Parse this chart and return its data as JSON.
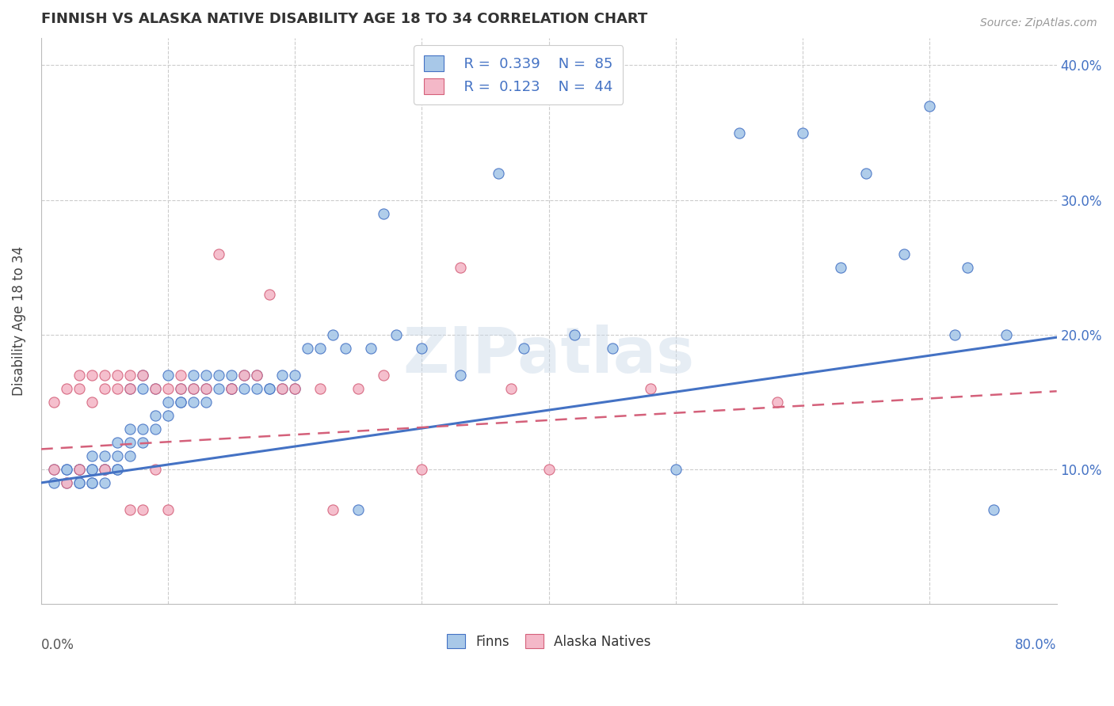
{
  "title": "FINNISH VS ALASKA NATIVE DISABILITY AGE 18 TO 34 CORRELATION CHART",
  "source": "Source: ZipAtlas.com",
  "ylabel": "Disability Age 18 to 34",
  "color_finn": "#a8c8e8",
  "color_finn_line": "#4472c4",
  "color_alaska": "#f4b8c8",
  "color_alaska_line": "#d4607a",
  "r_finn": 0.339,
  "n_finn": 85,
  "r_alaska": 0.123,
  "n_alaska": 44,
  "watermark": "ZIPatlas",
  "xlim": [
    0.0,
    0.8
  ],
  "ylim": [
    0.0,
    0.42
  ],
  "finn_scatter_x": [
    0.01,
    0.01,
    0.02,
    0.02,
    0.02,
    0.03,
    0.03,
    0.03,
    0.03,
    0.04,
    0.04,
    0.04,
    0.04,
    0.04,
    0.05,
    0.05,
    0.05,
    0.05,
    0.06,
    0.06,
    0.06,
    0.06,
    0.07,
    0.07,
    0.07,
    0.07,
    0.08,
    0.08,
    0.08,
    0.08,
    0.09,
    0.09,
    0.09,
    0.1,
    0.1,
    0.1,
    0.11,
    0.11,
    0.11,
    0.12,
    0.12,
    0.12,
    0.13,
    0.13,
    0.13,
    0.14,
    0.14,
    0.15,
    0.15,
    0.15,
    0.16,
    0.16,
    0.17,
    0.17,
    0.18,
    0.18,
    0.19,
    0.19,
    0.2,
    0.2,
    0.21,
    0.22,
    0.23,
    0.24,
    0.25,
    0.26,
    0.27,
    0.28,
    0.3,
    0.33,
    0.36,
    0.38,
    0.42,
    0.45,
    0.5,
    0.55,
    0.6,
    0.63,
    0.65,
    0.68,
    0.7,
    0.72,
    0.73,
    0.75,
    0.76
  ],
  "finn_scatter_y": [
    0.09,
    0.1,
    0.09,
    0.1,
    0.1,
    0.09,
    0.1,
    0.09,
    0.1,
    0.09,
    0.1,
    0.11,
    0.1,
    0.09,
    0.09,
    0.1,
    0.11,
    0.1,
    0.1,
    0.11,
    0.12,
    0.1,
    0.12,
    0.11,
    0.13,
    0.16,
    0.12,
    0.13,
    0.16,
    0.17,
    0.13,
    0.14,
    0.16,
    0.14,
    0.15,
    0.17,
    0.15,
    0.16,
    0.15,
    0.15,
    0.16,
    0.17,
    0.16,
    0.15,
    0.17,
    0.16,
    0.17,
    0.16,
    0.17,
    0.16,
    0.17,
    0.16,
    0.16,
    0.17,
    0.16,
    0.16,
    0.16,
    0.17,
    0.16,
    0.17,
    0.19,
    0.19,
    0.2,
    0.19,
    0.07,
    0.19,
    0.29,
    0.2,
    0.19,
    0.17,
    0.32,
    0.19,
    0.2,
    0.19,
    0.1,
    0.35,
    0.35,
    0.25,
    0.32,
    0.26,
    0.37,
    0.2,
    0.25,
    0.07,
    0.2
  ],
  "alaska_scatter_x": [
    0.01,
    0.01,
    0.02,
    0.02,
    0.03,
    0.03,
    0.03,
    0.04,
    0.04,
    0.05,
    0.05,
    0.05,
    0.06,
    0.06,
    0.07,
    0.07,
    0.07,
    0.08,
    0.08,
    0.09,
    0.09,
    0.1,
    0.1,
    0.11,
    0.11,
    0.12,
    0.13,
    0.14,
    0.15,
    0.16,
    0.17,
    0.18,
    0.19,
    0.2,
    0.22,
    0.23,
    0.25,
    0.27,
    0.3,
    0.33,
    0.37,
    0.4,
    0.48,
    0.58
  ],
  "alaska_scatter_y": [
    0.1,
    0.15,
    0.09,
    0.16,
    0.1,
    0.16,
    0.17,
    0.15,
    0.17,
    0.1,
    0.16,
    0.17,
    0.16,
    0.17,
    0.07,
    0.16,
    0.17,
    0.07,
    0.17,
    0.1,
    0.16,
    0.16,
    0.07,
    0.16,
    0.17,
    0.16,
    0.16,
    0.26,
    0.16,
    0.17,
    0.17,
    0.23,
    0.16,
    0.16,
    0.16,
    0.07,
    0.16,
    0.17,
    0.1,
    0.25,
    0.16,
    0.1,
    0.16,
    0.15
  ],
  "finn_line_x": [
    0.0,
    0.8
  ],
  "finn_line_y": [
    0.09,
    0.198
  ],
  "alaska_line_x": [
    0.0,
    0.8
  ],
  "alaska_line_y": [
    0.115,
    0.158
  ]
}
